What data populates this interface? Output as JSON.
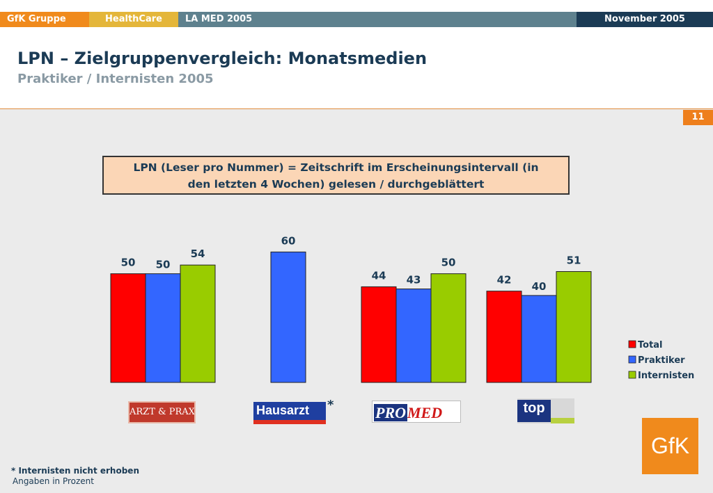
{
  "header": {
    "company": "GfK Gruppe",
    "division": "HealthCare",
    "study": "LA MED 2005",
    "date": "November 2005"
  },
  "title": "LPN – Zielgruppenvergleich: Monatsmedien",
  "subtitle": "Praktiker / Internisten 2005",
  "page_number": "11",
  "info_box": {
    "line1": "LPN (Leser pro Nummer) = Zeitschrift im Erscheinungsintervall (in",
    "line2": "den letzten 4 Wochen) gelesen / durchgeblättert"
  },
  "chart_data": {
    "type": "bar",
    "categories": [
      "ARZT & PRAXIS",
      "Hausarzt",
      "PROMED",
      "top medizin"
    ],
    "series": [
      {
        "name": "Total",
        "color": "#ff0000",
        "values": [
          50,
          null,
          44,
          42
        ]
      },
      {
        "name": "Praktiker",
        "color": "#3366ff",
        "values": [
          50,
          60,
          43,
          40
        ]
      },
      {
        "name": "Internisten",
        "color": "#99cc00",
        "values": [
          54,
          null,
          50,
          51
        ]
      }
    ],
    "legend_position": "right",
    "grid": false
  },
  "logos": {
    "arzt_praxis": "ARZT & PRAXIS",
    "hausarzt": "Hausarzt",
    "promed_pro": "PRO",
    "promed_med": "MED",
    "top": "top"
  },
  "asterisk": "*",
  "footnote": "* Internisten nicht erhoben",
  "note": "Angaben in Prozent",
  "brand_logo": "GfK",
  "colors": {
    "orange": "#f08a1c",
    "navy": "#1b3b55"
  }
}
